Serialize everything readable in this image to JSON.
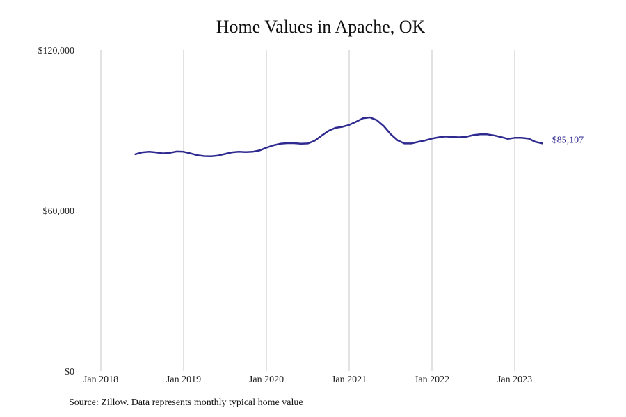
{
  "chart_data": {
    "type": "line",
    "title": "Home Values in Apache, OK",
    "xlabel": "",
    "ylabel": "",
    "ylim": [
      0,
      120000
    ],
    "xlim": [
      "2018-01",
      "2023-12"
    ],
    "y_ticks": [
      "$0",
      "$60,000",
      "$120,000"
    ],
    "y_tick_values": [
      0,
      60000,
      120000
    ],
    "x_ticks": [
      "Jan 2018",
      "Jan 2019",
      "Jan 2020",
      "Jan 2021",
      "Jan 2022",
      "Jan 2023"
    ],
    "x_tick_values": [
      "2018-01",
      "2019-01",
      "2020-01",
      "2021-01",
      "2022-01",
      "2023-01"
    ],
    "grid": "vertical",
    "line_color": "#2e2a8f",
    "end_label": "$85,107",
    "series": [
      {
        "x": [
          "2018-06",
          "2018-07",
          "2018-08",
          "2018-09",
          "2018-10",
          "2018-11",
          "2018-12",
          "2019-01",
          "2019-02",
          "2019-03",
          "2019-04",
          "2019-05",
          "2019-06",
          "2019-07",
          "2019-08",
          "2019-09",
          "2019-10",
          "2019-11",
          "2019-12",
          "2020-01",
          "2020-02",
          "2020-03",
          "2020-04",
          "2020-05",
          "2020-06",
          "2020-07",
          "2020-08",
          "2020-09",
          "2020-10",
          "2020-11",
          "2020-12",
          "2021-01",
          "2021-02",
          "2021-03",
          "2021-04",
          "2021-05",
          "2021-06",
          "2021-07",
          "2021-08",
          "2021-09",
          "2021-10",
          "2021-11",
          "2021-12",
          "2022-01",
          "2022-02",
          "2022-03",
          "2022-04",
          "2022-05",
          "2022-06",
          "2022-07",
          "2022-08",
          "2022-09",
          "2022-10",
          "2022-11",
          "2022-12",
          "2023-01",
          "2023-02",
          "2023-03",
          "2023-04",
          "2023-05"
        ],
        "values": [
          81100,
          81800,
          82000,
          81800,
          81400,
          81600,
          82100,
          82000,
          81400,
          80700,
          80400,
          80300,
          80600,
          81200,
          81800,
          82000,
          81900,
          82000,
          82500,
          83500,
          84400,
          85000,
          85200,
          85200,
          85000,
          85100,
          86100,
          88000,
          89800,
          90900,
          91300,
          92000,
          93200,
          94500,
          94800,
          93800,
          91600,
          88600,
          86300,
          85100,
          85100,
          85700,
          86200,
          86900,
          87400,
          87700,
          87500,
          87400,
          87600,
          88200,
          88500,
          88500,
          88100,
          87500,
          86800,
          87200,
          87200,
          86900,
          85700,
          85107
        ]
      }
    ]
  },
  "source_note": "Source: Zillow. Data represents monthly typical home value"
}
